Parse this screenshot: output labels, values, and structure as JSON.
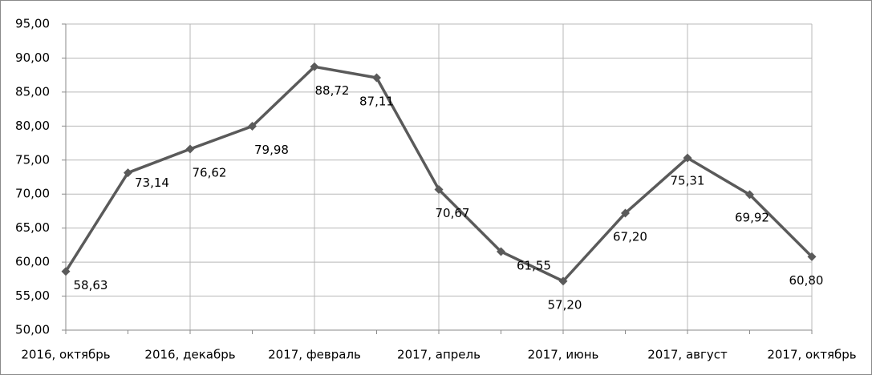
{
  "chart_data": {
    "type": "line",
    "categories": [
      "2016, октябрь",
      null,
      "2016, декабрь",
      null,
      "2017, февраль",
      null,
      "2017, апрель",
      null,
      "2017, июнь",
      null,
      "2017, август",
      null,
      "2017, октябрь"
    ],
    "series": [
      {
        "color": "#5a5a5a",
        "values": [
          58.63,
          73.14,
          76.62,
          79.98,
          88.72,
          87.11,
          70.67,
          61.55,
          57.2,
          67.2,
          75.31,
          69.92,
          60.8
        ],
        "value_labels": [
          "58,63",
          "73,14",
          "76,62",
          "79,98",
          "88,72",
          "87,11",
          "70,67",
          "61,55",
          "57,20",
          "67,20",
          "75,31",
          "69,92",
          "60,80"
        ]
      }
    ],
    "ylim": [
      50,
      95
    ],
    "yticks": [
      {
        "value": 50,
        "label": "50,00"
      },
      {
        "value": 55,
        "label": "55,00"
      },
      {
        "value": 60,
        "label": "60,00"
      },
      {
        "value": 65,
        "label": "65,00"
      },
      {
        "value": 70,
        "label": "70,00"
      },
      {
        "value": 75,
        "label": "75,00"
      },
      {
        "value": 80,
        "label": "80,00"
      },
      {
        "value": 85,
        "label": "85,00"
      },
      {
        "value": 90,
        "label": "90,00"
      },
      {
        "value": 95,
        "label": "95,00"
      }
    ],
    "grid": true
  }
}
